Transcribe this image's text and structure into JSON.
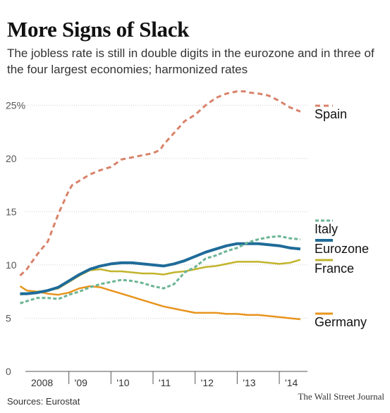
{
  "chart_data": {
    "type": "line",
    "title": "More Signs of Slack",
    "subtitle": "The jobless rate is still in double digits in the eurozone and in three of the four largest economies; harmonized rates",
    "ylim": [
      0,
      27.5
    ],
    "yticks": [
      0,
      5,
      10,
      15,
      20,
      25
    ],
    "ytick_labels": [
      "0",
      "5",
      "10",
      "15",
      "20",
      "25%"
    ],
    "xlim": [
      2008.0,
      2014.67
    ],
    "xticks": [
      {
        "pos": 2008.0,
        "label": "2008"
      },
      {
        "pos": 2009.0,
        "label": "'09"
      },
      {
        "pos": 2010.0,
        "label": "'10"
      },
      {
        "pos": 2011.0,
        "label": "'11"
      },
      {
        "pos": 2012.0,
        "label": "'12"
      },
      {
        "pos": 2013.0,
        "label": "'13"
      },
      {
        "pos": 2014.0,
        "label": "'14"
      }
    ],
    "grid": true,
    "series": [
      {
        "name": "Spain",
        "color": "#d9826a",
        "dash": "7,5",
        "x": [
          2007.84,
          2008.0,
          2008.25,
          2008.5,
          2008.75,
          2009.0,
          2009.08,
          2009.25,
          2009.5,
          2009.75,
          2010.0,
          2010.25,
          2010.5,
          2010.75,
          2011.0,
          2011.17,
          2011.25,
          2011.5,
          2011.75,
          2012.0,
          2012.25,
          2012.5,
          2012.75,
          2013.0,
          2013.17,
          2013.25,
          2013.5,
          2013.75,
          2014.0,
          2014.25,
          2014.5
        ],
        "y": [
          9.0,
          9.6,
          11.0,
          12.2,
          14.8,
          17.0,
          17.5,
          17.9,
          18.5,
          18.9,
          19.2,
          19.9,
          20.1,
          20.3,
          20.5,
          20.8,
          21.3,
          22.4,
          23.5,
          24.1,
          25.0,
          25.7,
          26.1,
          26.3,
          26.3,
          26.2,
          26.1,
          25.9,
          25.4,
          24.8,
          24.4
        ]
      },
      {
        "name": "Italy",
        "color": "#6bb594",
        "dash": "5,3",
        "x": [
          2007.84,
          2008.0,
          2008.25,
          2008.5,
          2008.75,
          2009.0,
          2009.25,
          2009.5,
          2009.75,
          2010.0,
          2010.25,
          2010.5,
          2010.75,
          2011.0,
          2011.25,
          2011.5,
          2011.75,
          2012.0,
          2012.25,
          2012.5,
          2012.75,
          2013.0,
          2013.25,
          2013.5,
          2013.75,
          2014.0,
          2014.25,
          2014.5
        ],
        "y": [
          6.4,
          6.6,
          6.9,
          6.9,
          6.8,
          7.2,
          7.5,
          7.9,
          8.2,
          8.4,
          8.6,
          8.5,
          8.3,
          8.0,
          7.8,
          8.2,
          9.3,
          9.8,
          10.6,
          10.9,
          11.3,
          11.6,
          12.1,
          12.4,
          12.6,
          12.7,
          12.5,
          12.4
        ]
      },
      {
        "name": "Eurozone",
        "color": "#1f6b99",
        "dash": "",
        "x": [
          2007.84,
          2008.0,
          2008.25,
          2008.5,
          2008.75,
          2009.0,
          2009.25,
          2009.5,
          2009.75,
          2010.0,
          2010.25,
          2010.5,
          2010.75,
          2011.0,
          2011.25,
          2011.5,
          2011.75,
          2012.0,
          2012.25,
          2012.5,
          2012.75,
          2013.0,
          2013.25,
          2013.5,
          2013.75,
          2014.0,
          2014.25,
          2014.5
        ],
        "y": [
          7.3,
          7.3,
          7.4,
          7.6,
          7.9,
          8.5,
          9.1,
          9.6,
          9.9,
          10.1,
          10.2,
          10.2,
          10.1,
          10.0,
          9.9,
          10.1,
          10.4,
          10.8,
          11.2,
          11.5,
          11.8,
          12.0,
          12.0,
          12.0,
          11.9,
          11.8,
          11.6,
          11.5
        ]
      },
      {
        "name": "France",
        "color": "#c2b42c",
        "dash": "",
        "x": [
          2007.84,
          2008.0,
          2008.25,
          2008.5,
          2008.75,
          2009.0,
          2009.25,
          2009.5,
          2009.75,
          2010.0,
          2010.25,
          2010.5,
          2010.75,
          2011.0,
          2011.25,
          2011.5,
          2011.75,
          2012.0,
          2012.25,
          2012.5,
          2012.75,
          2013.0,
          2013.25,
          2013.5,
          2013.75,
          2014.0,
          2014.25,
          2014.5
        ],
        "y": [
          7.2,
          7.3,
          7.5,
          7.6,
          7.8,
          8.4,
          9.0,
          9.5,
          9.6,
          9.4,
          9.4,
          9.3,
          9.2,
          9.2,
          9.1,
          9.3,
          9.4,
          9.6,
          9.8,
          9.9,
          10.1,
          10.3,
          10.3,
          10.3,
          10.2,
          10.1,
          10.2,
          10.5
        ]
      },
      {
        "name": "Germany",
        "color": "#e8941d",
        "dash": "",
        "x": [
          2007.84,
          2008.0,
          2008.25,
          2008.5,
          2008.75,
          2009.0,
          2009.25,
          2009.5,
          2009.75,
          2010.0,
          2010.25,
          2010.5,
          2010.75,
          2011.0,
          2011.25,
          2011.5,
          2011.75,
          2012.0,
          2012.25,
          2012.5,
          2012.75,
          2013.0,
          2013.25,
          2013.5,
          2013.75,
          2014.0,
          2014.25,
          2014.5
        ],
        "y": [
          8.0,
          7.6,
          7.5,
          7.3,
          7.2,
          7.4,
          7.8,
          8.0,
          7.9,
          7.6,
          7.3,
          7.0,
          6.7,
          6.4,
          6.1,
          5.9,
          5.7,
          5.5,
          5.5,
          5.5,
          5.4,
          5.4,
          5.3,
          5.3,
          5.2,
          5.1,
          5.0,
          4.9
        ]
      }
    ]
  },
  "source": "Sources: Eurostat",
  "credit": "The Wall Street Journal"
}
